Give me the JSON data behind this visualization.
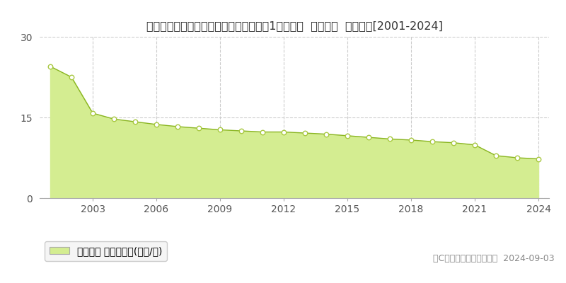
{
  "title": "愛知県知多郡南知多町大字山海字荒布赆1２０番２  地価公示  地価推移[2001-2024]",
  "years": [
    2001,
    2002,
    2003,
    2004,
    2005,
    2006,
    2007,
    2008,
    2009,
    2010,
    2011,
    2012,
    2013,
    2014,
    2015,
    2016,
    2017,
    2018,
    2019,
    2020,
    2021,
    2022,
    2023,
    2024
  ],
  "values": [
    24.5,
    22.5,
    15.8,
    14.7,
    14.2,
    13.7,
    13.3,
    13.0,
    12.7,
    12.5,
    12.3,
    12.3,
    12.1,
    11.9,
    11.6,
    11.3,
    11.0,
    10.8,
    10.5,
    10.3,
    9.9,
    7.9,
    7.5,
    7.3
  ],
  "fill_color": "#d4ed91",
  "line_color": "#8ab522",
  "marker_facecolor": "#ffffff",
  "marker_edgecolor": "#a8c840",
  "background_color": "#ffffff",
  "plot_bg_color": "#ffffff",
  "grid_color": "#cccccc",
  "ylim": [
    0,
    30
  ],
  "yticks": [
    0,
    15,
    30
  ],
  "xticks": [
    2003,
    2006,
    2009,
    2012,
    2015,
    2018,
    2021,
    2024
  ],
  "legend_label": "地価公示 平均嵪単価(万円/嵪)",
  "copyright_text": "（C）土地価格ドットコム  2024-09-03",
  "title_fontsize": 11.5,
  "tick_fontsize": 10,
  "legend_fontsize": 10,
  "copyright_fontsize": 9,
  "title_color": "#333333",
  "tick_color": "#555555",
  "copyright_color": "#888888"
}
